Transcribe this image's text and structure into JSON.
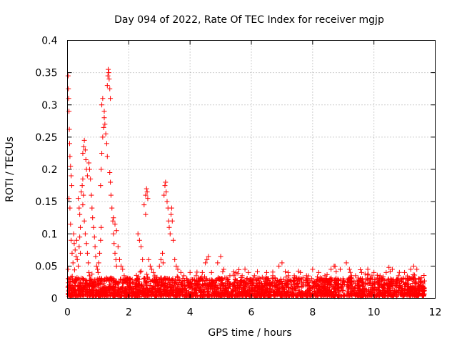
{
  "chart_data": {
    "type": "scatter",
    "title": "Day 094 of 2022, Rate Of TEC Index for receiver mgjp",
    "xlabel": "GPS time / hours",
    "ylabel": "ROTI / TECUs",
    "xlim": [
      0,
      12
    ],
    "ylim": [
      0,
      0.4
    ],
    "xticks": [
      0,
      2,
      4,
      6,
      8,
      10,
      12
    ],
    "xtick_labels": [
      "0",
      "2",
      "4",
      "6",
      "8",
      "10",
      "12"
    ],
    "yticks": [
      0,
      0.05,
      0.1,
      0.15,
      0.2,
      0.25,
      0.3,
      0.35,
      0.4
    ],
    "ytick_labels": [
      "0",
      "0.05",
      "0.1",
      "0.15",
      "0.2",
      "0.25",
      "0.3",
      "0.35",
      "0.4"
    ],
    "grid": true,
    "marker": "plus",
    "series_color": "#ff0000",
    "series": [
      {
        "points": [
          [
            0.02,
            0.345
          ],
          [
            0.03,
            0.325
          ],
          [
            0.04,
            0.31
          ],
          [
            0.05,
            0.29
          ],
          [
            0.06,
            0.262
          ],
          [
            0.07,
            0.24
          ],
          [
            0.08,
            0.22
          ],
          [
            0.1,
            0.205
          ],
          [
            0.12,
            0.19
          ],
          [
            0.14,
            0.175
          ],
          [
            0.05,
            0.155
          ],
          [
            0.08,
            0.14
          ],
          [
            0.1,
            0.115
          ],
          [
            0.12,
            0.09
          ],
          [
            0.15,
            0.07
          ],
          [
            0.18,
            0.055
          ],
          [
            0.02,
            0.045
          ],
          [
            0.04,
            0.03
          ],
          [
            0.06,
            0.02
          ],
          [
            0.09,
            0.015
          ],
          [
            0.2,
            0.1
          ],
          [
            0.22,
            0.085
          ],
          [
            0.25,
            0.075
          ],
          [
            0.28,
            0.065
          ],
          [
            0.3,
            0.09
          ],
          [
            0.32,
            0.06
          ],
          [
            0.35,
            0.05
          ],
          [
            0.38,
            0.08
          ],
          [
            0.4,
            0.095
          ],
          [
            0.42,
            0.07
          ],
          [
            0.35,
            0.155
          ],
          [
            0.38,
            0.14
          ],
          [
            0.4,
            0.13
          ],
          [
            0.42,
            0.11
          ],
          [
            0.45,
            0.165
          ],
          [
            0.48,
            0.175
          ],
          [
            0.5,
            0.185
          ],
          [
            0.52,
            0.16
          ],
          [
            0.5,
            0.145
          ],
          [
            0.55,
            0.12
          ],
          [
            0.5,
            0.225
          ],
          [
            0.53,
            0.235
          ],
          [
            0.55,
            0.245
          ],
          [
            0.58,
            0.23
          ],
          [
            0.6,
            0.215
          ],
          [
            0.62,
            0.2
          ],
          [
            0.65,
            0.19
          ],
          [
            0.7,
            0.21
          ],
          [
            0.72,
            0.2
          ],
          [
            0.75,
            0.185
          ],
          [
            0.58,
            0.1
          ],
          [
            0.62,
            0.085
          ],
          [
            0.65,
            0.07
          ],
          [
            0.68,
            0.055
          ],
          [
            0.7,
            0.04
          ],
          [
            0.72,
            0.035
          ],
          [
            0.78,
            0.16
          ],
          [
            0.8,
            0.14
          ],
          [
            0.82,
            0.125
          ],
          [
            0.85,
            0.11
          ],
          [
            0.88,
            0.095
          ],
          [
            0.9,
            0.08
          ],
          [
            0.92,
            0.065
          ],
          [
            0.95,
            0.05
          ],
          [
            0.98,
            0.045
          ],
          [
            1.0,
            0.04
          ],
          [
            1.02,
            0.055
          ],
          [
            1.05,
            0.07
          ],
          [
            1.08,
            0.09
          ],
          [
            1.1,
            0.11
          ],
          [
            1.08,
            0.175
          ],
          [
            1.1,
            0.2
          ],
          [
            1.12,
            0.225
          ],
          [
            1.15,
            0.25
          ],
          [
            1.18,
            0.265
          ],
          [
            1.2,
            0.28
          ],
          [
            1.12,
            0.3
          ],
          [
            1.15,
            0.31
          ],
          [
            1.2,
            0.29
          ],
          [
            1.22,
            0.27
          ],
          [
            1.25,
            0.255
          ],
          [
            1.28,
            0.24
          ],
          [
            1.3,
            0.22
          ],
          [
            1.3,
            0.33
          ],
          [
            1.32,
            0.345
          ],
          [
            1.33,
            0.355
          ],
          [
            1.35,
            0.35
          ],
          [
            1.36,
            0.34
          ],
          [
            1.38,
            0.325
          ],
          [
            1.4,
            0.31
          ],
          [
            1.38,
            0.195
          ],
          [
            1.4,
            0.18
          ],
          [
            1.42,
            0.16
          ],
          [
            1.45,
            0.14
          ],
          [
            1.48,
            0.12
          ],
          [
            1.5,
            0.1
          ],
          [
            1.52,
            0.085
          ],
          [
            1.55,
            0.07
          ],
          [
            1.58,
            0.06
          ],
          [
            1.6,
            0.05
          ],
          [
            1.5,
            0.125
          ],
          [
            1.55,
            0.115
          ],
          [
            1.6,
            0.105
          ],
          [
            1.65,
            0.08
          ],
          [
            1.7,
            0.06
          ],
          [
            1.75,
            0.05
          ],
          [
            1.8,
            0.045
          ],
          [
            1.85,
            0.035
          ],
          [
            1.9,
            0.03
          ],
          [
            1.95,
            0.025
          ],
          [
            2.3,
            0.1
          ],
          [
            2.35,
            0.09
          ],
          [
            2.4,
            0.08
          ],
          [
            2.45,
            0.06
          ],
          [
            2.5,
            0.145
          ],
          [
            2.55,
            0.16
          ],
          [
            2.58,
            0.17
          ],
          [
            2.6,
            0.165
          ],
          [
            2.62,
            0.155
          ],
          [
            2.55,
            0.13
          ],
          [
            2.65,
            0.06
          ],
          [
            2.7,
            0.05
          ],
          [
            2.75,
            0.045
          ],
          [
            2.8,
            0.04
          ],
          [
            2.85,
            0.035
          ],
          [
            2.9,
            0.03
          ],
          [
            3.0,
            0.05
          ],
          [
            3.05,
            0.06
          ],
          [
            3.1,
            0.07
          ],
          [
            3.12,
            0.055
          ],
          [
            3.15,
            0.16
          ],
          [
            3.18,
            0.175
          ],
          [
            3.2,
            0.18
          ],
          [
            3.22,
            0.165
          ],
          [
            3.25,
            0.15
          ],
          [
            3.28,
            0.14
          ],
          [
            3.3,
            0.12
          ],
          [
            3.32,
            0.11
          ],
          [
            3.35,
            0.1
          ],
          [
            3.38,
            0.13
          ],
          [
            3.4,
            0.14
          ],
          [
            3.42,
            0.12
          ],
          [
            3.45,
            0.09
          ],
          [
            3.5,
            0.06
          ],
          [
            3.55,
            0.05
          ],
          [
            3.6,
            0.045
          ],
          [
            3.7,
            0.04
          ],
          [
            3.8,
            0.035
          ],
          [
            3.9,
            0.03
          ],
          [
            4.0,
            0.04
          ],
          [
            4.2,
            0.035
          ],
          [
            4.4,
            0.04
          ],
          [
            4.5,
            0.055
          ],
          [
            4.55,
            0.06
          ],
          [
            4.6,
            0.065
          ],
          [
            4.7,
            0.04
          ],
          [
            4.9,
            0.055
          ],
          [
            5.0,
            0.065
          ],
          [
            5.1,
            0.045
          ],
          [
            5.3,
            0.035
          ],
          [
            5.5,
            0.04
          ],
          [
            5.7,
            0.035
          ],
          [
            5.9,
            0.04
          ],
          [
            6.1,
            0.035
          ],
          [
            6.3,
            0.03
          ],
          [
            6.5,
            0.04
          ],
          [
            6.7,
            0.035
          ],
          [
            6.9,
            0.05
          ],
          [
            7.0,
            0.055
          ],
          [
            7.2,
            0.04
          ],
          [
            7.4,
            0.035
          ],
          [
            7.6,
            0.04
          ],
          [
            7.8,
            0.035
          ],
          [
            8.0,
            0.045
          ],
          [
            8.2,
            0.04
          ],
          [
            8.4,
            0.035
          ],
          [
            8.6,
            0.045
          ],
          [
            8.7,
            0.05
          ],
          [
            8.9,
            0.045
          ],
          [
            9.1,
            0.055
          ],
          [
            9.2,
            0.045
          ],
          [
            9.4,
            0.035
          ],
          [
            9.6,
            0.04
          ],
          [
            9.8,
            0.045
          ],
          [
            10.0,
            0.04
          ],
          [
            10.2,
            0.035
          ],
          [
            10.4,
            0.04
          ],
          [
            10.6,
            0.045
          ],
          [
            10.8,
            0.035
          ],
          [
            11.0,
            0.04
          ],
          [
            11.2,
            0.045
          ],
          [
            11.3,
            0.05
          ],
          [
            11.4,
            0.045
          ],
          [
            11.5,
            0.03
          ],
          [
            11.6,
            0.025
          ]
        ]
      }
    ],
    "baseline": {
      "segments": [
        [
          0.0,
          9.05
        ],
        [
          9.12,
          11.65
        ]
      ],
      "y_range": [
        0.003,
        0.032
      ],
      "density_per_hour": 240
    }
  }
}
